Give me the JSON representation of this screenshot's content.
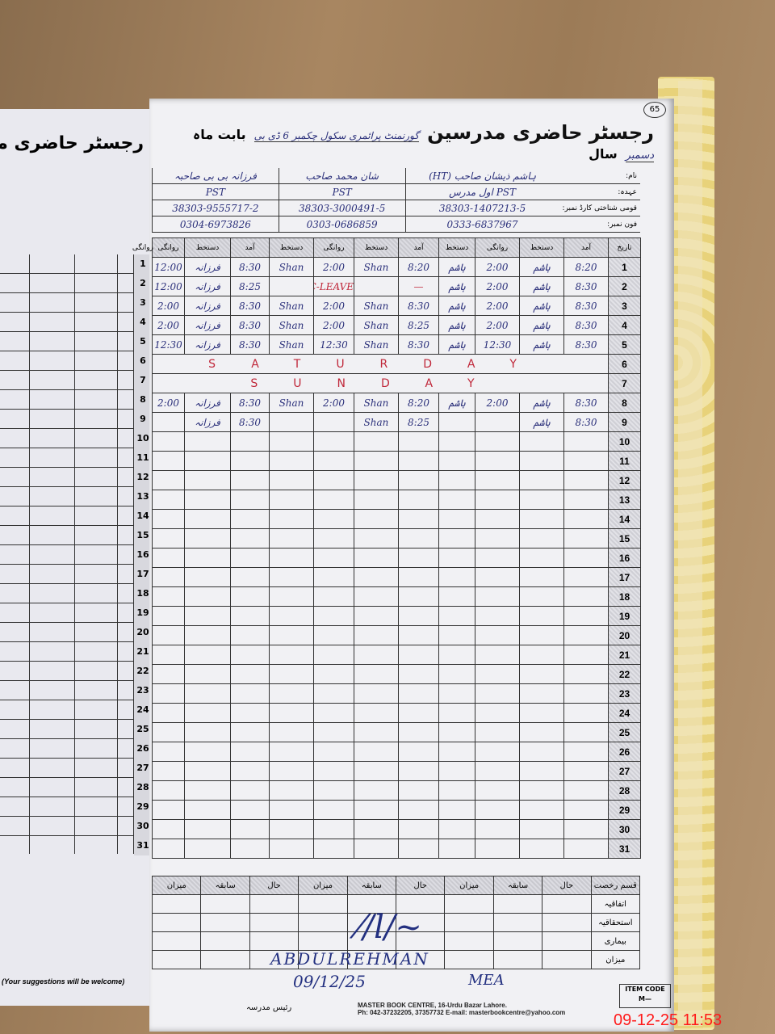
{
  "left_page": {
    "title": "رجسٹر حاضری مدرسین",
    "footer": "(Your suggestions will be welcome)"
  },
  "header": {
    "page_number": "65",
    "title": "رجسٹر حاضری مدرسین",
    "school": "گورنمنٹ پرائمری سکول چکمبر 6 ڈی بی",
    "month_label": "بابت ماہ",
    "month": "دسمبر",
    "year_label": "سال"
  },
  "info_labels": {
    "name": "نام:",
    "designation": "عہدہ:",
    "cnic": "قومی شناختی کارڈ نمبر:",
    "phone": "فون نمبر:"
  },
  "teachers": [
    {
      "name": "ہاشم ذیشان صاحب (HT)",
      "designation": "PST اول مدرس",
      "cnic": "38303-1407213-5",
      "phone": "0333-6837967"
    },
    {
      "name": "شان محمد صاحب",
      "designation": "PST",
      "cnic": "38303-3000491-5",
      "phone": "0303-0686859"
    },
    {
      "name": "فرزانہ بی بی صاحبہ",
      "designation": "PST",
      "cnic": "38303-9555717-2",
      "phone": "0304-6973826"
    }
  ],
  "columns": {
    "date": "تاریخ",
    "arrival": "آمد",
    "signature": "دستخط",
    "departure": "روانگی"
  },
  "rows": [
    {
      "day": "1",
      "cells": [
        "8:20",
        "ہاشم",
        "2:00",
        "ہاشم",
        "8:20",
        "Shan",
        "2:00",
        "Shan",
        "8:30",
        "فرزانہ",
        "12:00"
      ]
    },
    {
      "day": "2",
      "cells": [
        "8:30",
        "ہاشم",
        "2:00",
        "ہاشم",
        "—",
        "",
        "C-LEAVE",
        "",
        "8:25",
        "فرزانہ",
        "12:00"
      ],
      "red": [
        4,
        5,
        6,
        7
      ]
    },
    {
      "day": "3",
      "cells": [
        "8:30",
        "ہاشم",
        "2:00",
        "ہاشم",
        "8:30",
        "Shan",
        "2:00",
        "Shan",
        "8:30",
        "فرزانہ",
        "2:00"
      ]
    },
    {
      "day": "4",
      "cells": [
        "8:30",
        "ہاشم",
        "2:00",
        "ہاشم",
        "8:25",
        "Shan",
        "2:00",
        "Shan",
        "8:30",
        "فرزانہ",
        "2:00"
      ]
    },
    {
      "day": "5",
      "cells": [
        "8:30",
        "ہاشم",
        "12:30",
        "ہاشم",
        "8:30",
        "Shan",
        "12:30",
        "Shan",
        "8:30",
        "فرزانہ",
        "12:30"
      ]
    },
    {
      "day": "6",
      "note": "SATURDAY"
    },
    {
      "day": "7",
      "note": "SUNDAY"
    },
    {
      "day": "8",
      "cells": [
        "8:30",
        "ہاشم",
        "2:00",
        "ہاشم",
        "8:20",
        "Shan",
        "2:00",
        "Shan",
        "8:30",
        "فرزانہ",
        "2:00"
      ]
    },
    {
      "day": "9",
      "cells": [
        "8:30",
        "ہاشم",
        "",
        "",
        "8:25",
        "Shan",
        "",
        "",
        "8:30",
        "فرزانہ",
        ""
      ]
    },
    {
      "day": "10"
    },
    {
      "day": "11"
    },
    {
      "day": "12"
    },
    {
      "day": "13"
    },
    {
      "day": "14"
    },
    {
      "day": "15"
    },
    {
      "day": "16"
    },
    {
      "day": "17"
    },
    {
      "day": "18"
    },
    {
      "day": "19"
    },
    {
      "day": "20"
    },
    {
      "day": "21"
    },
    {
      "day": "22"
    },
    {
      "day": "23"
    },
    {
      "day": "24"
    },
    {
      "day": "25"
    },
    {
      "day": "26"
    },
    {
      "day": "27"
    },
    {
      "day": "28"
    },
    {
      "day": "29"
    },
    {
      "day": "30"
    },
    {
      "day": "31"
    }
  ],
  "summary": {
    "leave_type": "قسم رخصت",
    "cols": [
      "حال",
      "سابقہ",
      "میزان"
    ],
    "rows": [
      "اتفاقیہ",
      "استحقاقیہ",
      "بیماری",
      "میزان"
    ]
  },
  "signature": {
    "name": "ABDULREHMAN",
    "date": "09/12/25",
    "title": "MEA"
  },
  "footer": {
    "head_sign": "رئیس مدرسہ",
    "printer_line1": "MASTER BOOK CENTRE, 16-Urdu Bazar Lahore.",
    "printer_line2": "Ph: 042-37232205, 37357732 E-mail: masterbookcentre@yahoo.com",
    "item_code_label": "ITEM CODE",
    "item_code": "M—"
  },
  "timestamp": "09-12-25  11:53"
}
